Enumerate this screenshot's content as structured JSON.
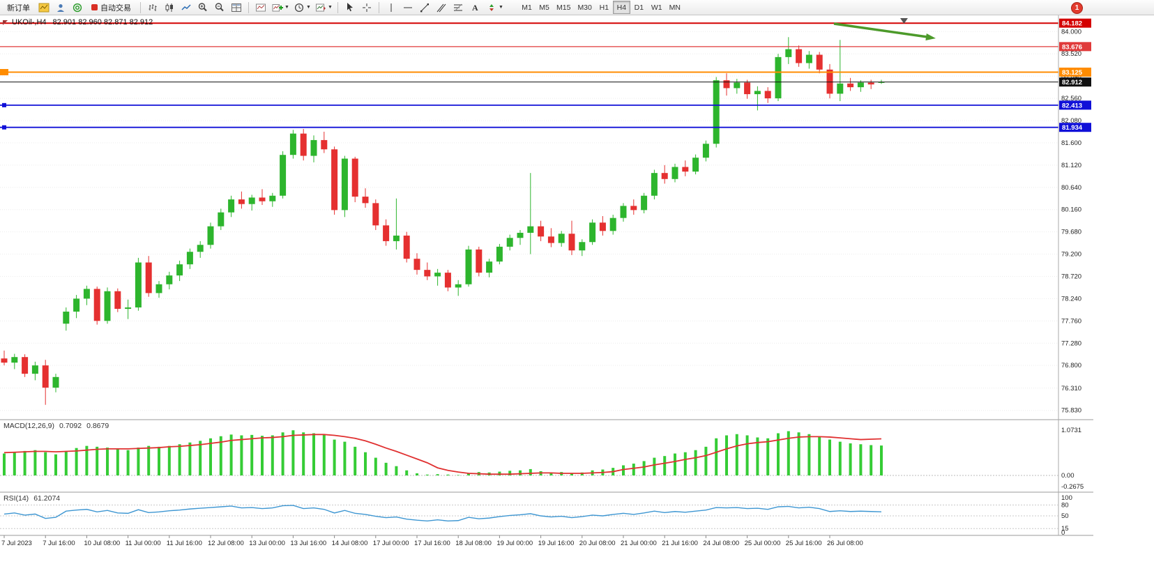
{
  "toolbar": {
    "new_order": "新订单",
    "auto_trading": "自动交易",
    "timeframes": [
      "M1",
      "M5",
      "M15",
      "M30",
      "H1",
      "H4",
      "D1",
      "W1",
      "MN"
    ],
    "active_timeframe": "H4",
    "notification_badge": "1"
  },
  "chart": {
    "title": "UKOil-,H4",
    "ohlc_readout": "82.901 82.960 82.871 82.912",
    "price_axis_labels": [
      "84.000",
      "83.520",
      "83.040",
      "82.560",
      "82.080",
      "81.600",
      "81.120",
      "80.640",
      "80.160",
      "79.680",
      "79.200",
      "78.720",
      "78.240",
      "77.760",
      "77.280",
      "76.800",
      "76.310",
      "75.830"
    ],
    "levels": [
      {
        "price": "84.182",
        "value": 84.182,
        "color": "#d40000",
        "width": 2
      },
      {
        "price": "83.676",
        "value": 83.676,
        "color": "#e03a3a",
        "width": 1.3
      },
      {
        "price": "83.125",
        "value": 83.125,
        "color": "#ff8c00",
        "width": 2,
        "handle": "large"
      },
      {
        "price": "82.912",
        "value": 82.912,
        "color": "#111111",
        "width": 1,
        "bid": true
      },
      {
        "price": "82.413",
        "value": 82.413,
        "color": "#1010d8",
        "width": 1.8,
        "handle": "small"
      },
      {
        "price": "81.934",
        "value": 81.934,
        "color": "#1010d8",
        "width": 1.8,
        "handle": "small"
      }
    ]
  },
  "macd_panel": {
    "label": "MACD(12,26,9)",
    "macd_value": "0.7092",
    "signal_value": "0.8679",
    "scale_labels": [
      "1.0731",
      "0.00",
      "-0.2675"
    ]
  },
  "rsi_panel": {
    "label": "RSI(14)",
    "value": "61.2074",
    "scale_labels": [
      "100",
      "80",
      "50",
      "15",
      "0"
    ]
  },
  "chart_data": {
    "type": "candlestick",
    "symbol": "UKOil-",
    "timeframe": "H4",
    "label_interval": 4,
    "y_range": [
      75.66,
      84.26
    ],
    "x_labels": [
      "7 Jul 2023",
      "7 Jul 16:00",
      "10 Jul 08:00",
      "11 Jul 00:00",
      "11 Jul 16:00",
      "12 Jul 08:00",
      "13 Jul 00:00",
      "13 Jul 16:00",
      "14 Jul 08:00",
      "17 Jul 00:00",
      "17 Jul 16:00",
      "18 Jul 08:00",
      "19 Jul 00:00",
      "19 Jul 16:00",
      "20 Jul 08:00",
      "21 Jul 00:00",
      "21 Jul 16:00",
      "24 Jul 08:00",
      "25 Jul 00:00",
      "25 Jul 16:00",
      "26 Jul 08:00"
    ],
    "ohlc": [
      [
        76.95,
        77.12,
        76.8,
        76.86
      ],
      [
        76.86,
        77.05,
        76.72,
        76.98
      ],
      [
        76.98,
        77.04,
        76.55,
        76.62
      ],
      [
        76.62,
        76.88,
        76.48,
        76.8
      ],
      [
        76.8,
        76.92,
        75.95,
        76.32
      ],
      [
        76.32,
        76.62,
        76.22,
        76.55
      ],
      [
        77.7,
        78.05,
        77.55,
        77.96
      ],
      [
        77.96,
        78.32,
        77.82,
        78.24
      ],
      [
        78.24,
        78.52,
        78.1,
        78.45
      ],
      [
        78.45,
        78.5,
        77.68,
        77.76
      ],
      [
        77.76,
        78.48,
        77.7,
        78.4
      ],
      [
        78.4,
        78.46,
        77.95,
        78.02
      ],
      [
        78.02,
        78.22,
        77.8,
        78.05
      ],
      [
        78.05,
        79.12,
        77.98,
        79.02
      ],
      [
        79.02,
        79.16,
        78.28,
        78.36
      ],
      [
        78.36,
        78.62,
        78.26,
        78.55
      ],
      [
        78.55,
        78.82,
        78.44,
        78.74
      ],
      [
        78.74,
        79.06,
        78.62,
        78.98
      ],
      [
        78.98,
        79.32,
        78.88,
        79.25
      ],
      [
        79.25,
        79.48,
        79.12,
        79.4
      ],
      [
        79.4,
        79.88,
        79.32,
        79.8
      ],
      [
        79.8,
        80.18,
        79.72,
        80.1
      ],
      [
        80.1,
        80.46,
        80.0,
        80.38
      ],
      [
        80.38,
        80.55,
        80.18,
        80.28
      ],
      [
        80.28,
        80.48,
        80.14,
        80.42
      ],
      [
        80.42,
        80.6,
        80.26,
        80.34
      ],
      [
        80.34,
        80.52,
        80.22,
        80.46
      ],
      [
        80.46,
        81.42,
        80.4,
        81.34
      ],
      [
        81.34,
        81.88,
        81.26,
        81.8
      ],
      [
        81.8,
        81.9,
        81.22,
        81.32
      ],
      [
        81.32,
        81.76,
        81.18,
        81.66
      ],
      [
        81.66,
        81.84,
        81.38,
        81.46
      ],
      [
        81.46,
        81.52,
        80.05,
        80.15
      ],
      [
        80.15,
        81.32,
        80.0,
        81.26
      ],
      [
        81.26,
        81.3,
        80.32,
        80.44
      ],
      [
        80.44,
        80.62,
        80.2,
        80.3
      ],
      [
        80.3,
        80.38,
        79.72,
        79.82
      ],
      [
        79.82,
        79.95,
        79.38,
        79.48
      ],
      [
        79.48,
        80.4,
        79.3,
        79.6
      ],
      [
        79.6,
        79.68,
        79.02,
        79.1
      ],
      [
        79.1,
        79.22,
        78.76,
        78.86
      ],
      [
        78.86,
        79.02,
        78.64,
        78.72
      ],
      [
        78.72,
        78.88,
        78.52,
        78.8
      ],
      [
        78.8,
        78.86,
        78.4,
        78.48
      ],
      [
        78.48,
        78.64,
        78.3,
        78.55
      ],
      [
        78.55,
        79.38,
        78.5,
        79.3
      ],
      [
        79.3,
        79.36,
        78.72,
        78.8
      ],
      [
        78.8,
        79.1,
        78.7,
        79.04
      ],
      [
        79.04,
        79.42,
        78.98,
        79.36
      ],
      [
        79.36,
        79.62,
        79.28,
        79.55
      ],
      [
        79.55,
        79.72,
        79.4,
        79.66
      ],
      [
        79.66,
        80.95,
        79.2,
        79.8
      ],
      [
        79.8,
        79.92,
        79.48,
        79.58
      ],
      [
        79.58,
        79.76,
        79.35,
        79.44
      ],
      [
        79.44,
        79.7,
        79.36,
        79.64
      ],
      [
        79.64,
        79.92,
        79.18,
        79.28
      ],
      [
        79.28,
        79.52,
        79.16,
        79.46
      ],
      [
        79.46,
        79.95,
        79.4,
        79.88
      ],
      [
        79.88,
        80.02,
        79.6,
        79.7
      ],
      [
        79.7,
        80.05,
        79.62,
        79.98
      ],
      [
        79.98,
        80.3,
        79.9,
        80.24
      ],
      [
        80.24,
        80.38,
        80.05,
        80.15
      ],
      [
        80.15,
        80.52,
        80.08,
        80.46
      ],
      [
        80.46,
        81.02,
        80.38,
        80.95
      ],
      [
        80.95,
        81.12,
        80.72,
        80.82
      ],
      [
        80.82,
        81.15,
        80.75,
        81.08
      ],
      [
        81.08,
        81.22,
        80.88,
        80.98
      ],
      [
        80.98,
        81.35,
        80.92,
        81.28
      ],
      [
        81.28,
        81.65,
        81.2,
        81.58
      ],
      [
        81.58,
        83.02,
        81.5,
        82.95
      ],
      [
        82.95,
        83.1,
        82.62,
        82.78
      ],
      [
        82.78,
        82.98,
        82.66,
        82.9
      ],
      [
        82.9,
        82.96,
        82.55,
        82.65
      ],
      [
        82.65,
        82.82,
        82.3,
        82.72
      ],
      [
        82.72,
        82.8,
        82.46,
        82.56
      ],
      [
        82.56,
        83.52,
        82.5,
        83.45
      ],
      [
        83.45,
        83.88,
        83.3,
        83.62
      ],
      [
        83.62,
        83.7,
        83.24,
        83.32
      ],
      [
        83.32,
        83.58,
        83.2,
        83.5
      ],
      [
        83.5,
        83.56,
        83.1,
        83.18
      ],
      [
        83.18,
        83.3,
        82.56,
        82.66
      ],
      [
        82.66,
        83.82,
        82.5,
        82.88
      ],
      [
        82.88,
        83.0,
        82.72,
        82.8
      ],
      [
        82.8,
        82.95,
        82.7,
        82.9
      ],
      [
        82.9,
        82.96,
        82.76,
        82.86
      ],
      [
        82.901,
        82.96,
        82.871,
        82.912
      ]
    ],
    "macd": {
      "range": [
        -0.2675,
        1.0731
      ],
      "histogram": [
        0.52,
        0.55,
        0.58,
        0.6,
        0.55,
        0.5,
        0.58,
        0.65,
        0.7,
        0.68,
        0.66,
        0.62,
        0.6,
        0.66,
        0.7,
        0.68,
        0.7,
        0.74,
        0.78,
        0.82,
        0.88,
        0.93,
        0.97,
        0.95,
        0.96,
        0.94,
        0.95,
        1.02,
        1.07,
        1.02,
        1.0,
        0.96,
        0.85,
        0.8,
        0.68,
        0.55,
        0.42,
        0.3,
        0.22,
        0.12,
        0.05,
        0.02,
        0.03,
        0.02,
        0.01,
        0.05,
        0.08,
        0.07,
        0.09,
        0.11,
        0.12,
        0.15,
        0.1,
        0.06,
        0.08,
        0.05,
        0.07,
        0.12,
        0.14,
        0.18,
        0.24,
        0.28,
        0.34,
        0.42,
        0.46,
        0.52,
        0.55,
        0.6,
        0.68,
        0.88,
        0.95,
        0.98,
        0.95,
        0.9,
        0.88,
        1.0,
        1.05,
        1.02,
        0.98,
        0.92,
        0.85,
        0.8,
        0.76,
        0.74,
        0.72,
        0.7092
      ],
      "signal": [
        0.54,
        0.55,
        0.56,
        0.57,
        0.57,
        0.56,
        0.57,
        0.58,
        0.6,
        0.62,
        0.63,
        0.63,
        0.63,
        0.64,
        0.65,
        0.66,
        0.68,
        0.69,
        0.71,
        0.73,
        0.76,
        0.79,
        0.83,
        0.85,
        0.87,
        0.89,
        0.9,
        0.92,
        0.95,
        0.96,
        0.97,
        0.97,
        0.95,
        0.92,
        0.88,
        0.82,
        0.74,
        0.65,
        0.57,
        0.48,
        0.39,
        0.3,
        0.18,
        0.12,
        0.08,
        0.05,
        0.04,
        0.03,
        0.03,
        0.03,
        0.04,
        0.05,
        0.06,
        0.06,
        0.05,
        0.05,
        0.05,
        0.06,
        0.07,
        0.09,
        0.14,
        0.17,
        0.2,
        0.25,
        0.29,
        0.33,
        0.38,
        0.42,
        0.47,
        0.55,
        0.63,
        0.7,
        0.75,
        0.78,
        0.8,
        0.84,
        0.88,
        0.91,
        0.92,
        0.92,
        0.91,
        0.89,
        0.87,
        0.85,
        0.86,
        0.8679
      ]
    },
    "rsi": {
      "range": [
        0,
        100
      ],
      "levels": [
        80,
        50,
        15
      ],
      "values": [
        55,
        58,
        52,
        55,
        43,
        46,
        63,
        66,
        68,
        61,
        65,
        58,
        57,
        67,
        59,
        61,
        64,
        66,
        69,
        71,
        73,
        75,
        77,
        72,
        73,
        70,
        72,
        78,
        79,
        70,
        72,
        68,
        58,
        65,
        57,
        54,
        49,
        45,
        47,
        41,
        38,
        36,
        39,
        36,
        37,
        46,
        42,
        44,
        48,
        51,
        53,
        56,
        50,
        47,
        49,
        45,
        48,
        52,
        50,
        54,
        57,
        54,
        58,
        63,
        59,
        62,
        60,
        63,
        66,
        73,
        72,
        73,
        70,
        71,
        68,
        75,
        76,
        72,
        74,
        70,
        62,
        64,
        62,
        63,
        62,
        61.2
      ]
    },
    "annotations": [
      {
        "type": "arrow",
        "direction": "right-down",
        "color": "#4c9a2a"
      }
    ],
    "colors": {
      "up": "#2db52d",
      "down": "#e53030",
      "macd_histogram": "#35cc35",
      "macd_signal": "#e03030",
      "rsi": "#3d96d2"
    }
  }
}
